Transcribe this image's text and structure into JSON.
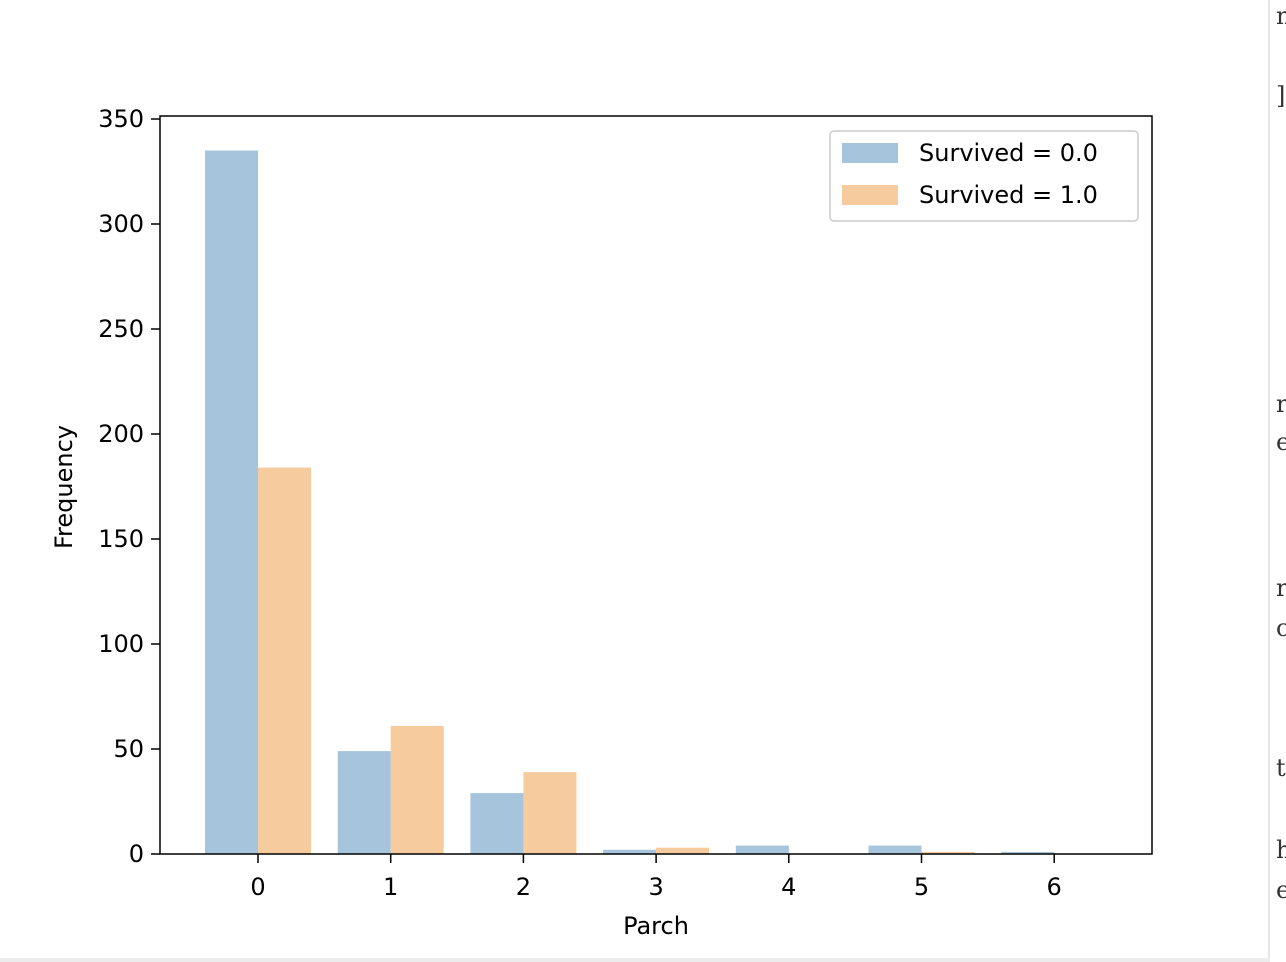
{
  "chart_data": {
    "type": "bar",
    "categories": [
      "0",
      "1",
      "2",
      "3",
      "4",
      "5",
      "6"
    ],
    "series": [
      {
        "name": "Survived = 0.0",
        "values": [
          335,
          49,
          29,
          2,
          4,
          4,
          1
        ],
        "color": "#a6c5dc"
      },
      {
        "name": "Survived = 1.0",
        "values": [
          184,
          61,
          39,
          3,
          0,
          1,
          0
        ],
        "color": "#f6cb9e"
      }
    ],
    "xlabel": "Parch",
    "ylabel": "Frequency",
    "ylim": [
      0,
      350
    ],
    "yticks": [
      0,
      50,
      100,
      150,
      200,
      250,
      300,
      350
    ],
    "grid": false,
    "legend": "top-right"
  },
  "side_fragments": [
    "n",
    "]",
    "r",
    "e",
    "r",
    "c",
    "t",
    "h",
    "e"
  ]
}
